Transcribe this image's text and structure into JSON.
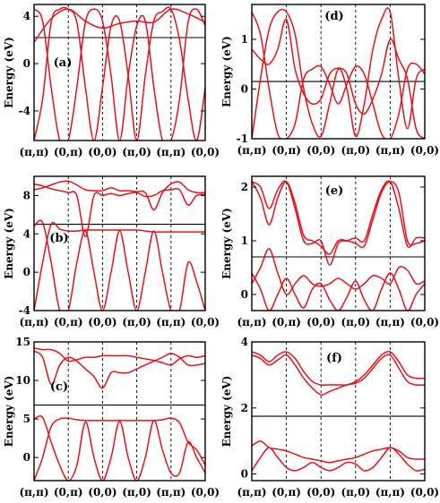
{
  "chart_data": [
    {
      "type": "line",
      "panel_label": "(a)",
      "ylabel": "Energy (eV)",
      "xticks": [
        "(π,π)",
        "(0,π)",
        "(0,0)",
        "(π,0)",
        "(π,π)",
        "(0,0)"
      ],
      "ylim": [
        -6.5,
        5
      ],
      "yticks": [
        -4,
        0,
        4
      ],
      "fermi_level": 2.2,
      "series": [
        {
          "x": [
            0,
            0.25,
            0.5,
            0.75,
            1,
            1.25,
            1.5,
            1.75,
            2,
            2.25,
            2.5,
            2.75,
            3,
            3.25,
            3.5,
            3.75,
            4,
            4.25,
            4.5,
            4.75,
            5
          ],
          "values": [
            -6.5,
            -3,
            3.5,
            4.6,
            4.6,
            3.5,
            -2,
            -6.5,
            -2,
            3.2,
            3.6,
            -1,
            -6.5,
            -1,
            3.6,
            4.4,
            4.6,
            2,
            -3,
            -6.5,
            -2
          ]
        },
        {
          "x": [
            0,
            0.25,
            0.5,
            0.75,
            1,
            1.25,
            1.5,
            1.75,
            2,
            2.25,
            2.5,
            2.75,
            3,
            3.25,
            3.5,
            3.75,
            4,
            4.25,
            4.5,
            4.75,
            5
          ],
          "values": [
            4.6,
            3.6,
            -2,
            -6.5,
            -6.5,
            -2,
            3.5,
            4.6,
            3.6,
            -1,
            -6.5,
            -1,
            3.2,
            3.6,
            -2,
            -6.5,
            -6.5,
            -3,
            3.5,
            4.6,
            3.2
          ]
        },
        {
          "x": [
            0,
            0.5,
            1,
            1.5,
            2,
            2.5,
            3,
            3.5,
            4,
            4.5,
            5
          ],
          "values": [
            1.8,
            3.8,
            4.6,
            3.6,
            3,
            3.4,
            3.6,
            3.5,
            4.6,
            4.2,
            3.5
          ]
        }
      ]
    },
    {
      "type": "line",
      "panel_label": "(b)",
      "ylabel": "Energy (eV)",
      "xticks": [
        "(π,π)",
        "(0,π)",
        "(0,0)",
        "(π,0)",
        "(π,π)",
        "(0,0)"
      ],
      "ylim": [
        -4,
        10
      ],
      "yticks": [
        -4,
        0,
        4,
        8
      ],
      "fermi_level": 5,
      "series": [
        {
          "x": [
            0,
            0.25,
            0.5,
            0.75,
            1,
            1.25,
            1.5,
            1.75,
            2,
            2.25,
            2.5,
            2.75,
            3,
            3.25,
            3.5,
            3.75,
            4,
            4.25,
            4.5,
            4.75,
            5
          ],
          "values": [
            -4,
            1,
            5,
            4.5,
            4.3,
            4.3,
            4.4,
            4.4,
            4.4,
            4.4,
            4.4,
            4.4,
            4.4,
            4.3,
            4.2,
            4.2,
            4.2,
            4.2,
            4.2,
            4.2,
            4.2
          ]
        },
        {
          "x": [
            0,
            0.25,
            0.5,
            0.75,
            1,
            1.25,
            1.5,
            1.75,
            2,
            2.25,
            2.5,
            2.75,
            3,
            3.25,
            3.5,
            3.75,
            4,
            4.25,
            4.5,
            4.75,
            5
          ],
          "values": [
            4.8,
            5.2,
            1,
            -4,
            -4,
            1,
            4.3,
            0,
            -4,
            0,
            4.3,
            0,
            -4,
            0,
            4.3,
            0,
            -4,
            -4,
            1,
            -1,
            -4
          ]
        },
        {
          "x": [
            0,
            0.25,
            0.5,
            0.75,
            1,
            1.25,
            1.5,
            1.75,
            2,
            2.25,
            2.5,
            2.75,
            3,
            3.25,
            3.5,
            3.75,
            4,
            4.25,
            4.5,
            4.75,
            5
          ],
          "values": [
            9.2,
            9,
            8.7,
            8.5,
            8.3,
            8,
            3.7,
            8,
            8,
            8.2,
            8,
            8.2,
            8.3,
            7.9,
            8,
            8.5,
            8.6,
            8.6,
            7,
            8,
            8.1
          ]
        },
        {
          "x": [
            0,
            0.25,
            0.5,
            0.75,
            1,
            1.25,
            1.5,
            1.75,
            2,
            2.25,
            2.5,
            2.75,
            3,
            3.25,
            3.5,
            3.75,
            4,
            4.25,
            4.5,
            4.75,
            5
          ],
          "values": [
            8.6,
            8.8,
            9.1,
            9.4,
            9.5,
            9.1,
            8.6,
            8.5,
            8.5,
            8.8,
            8.5,
            8.5,
            8.4,
            8.3,
            6.5,
            8.3,
            9.2,
            9.4,
            8.6,
            8.3,
            8.3
          ]
        }
      ]
    },
    {
      "type": "line",
      "panel_label": "(c)",
      "ylabel": "Energy (eV)",
      "xticks": [
        "(π,π)",
        "(0,π)",
        "(0,0)",
        "(π,0)",
        "(π,π)",
        "(0,0)"
      ],
      "ylim": [
        -3,
        15
      ],
      "yticks": [
        0,
        5,
        10,
        15
      ],
      "fermi_level": 6.8,
      "series": [
        {
          "x": [
            0,
            0.25,
            0.5,
            0.75,
            1,
            1.25,
            1.5,
            1.75,
            2,
            2.25,
            2.5,
            2.75,
            3,
            3.25,
            3.5,
            3.75,
            4,
            4.25,
            4.5,
            4.75,
            5
          ],
          "values": [
            -3,
            0,
            4,
            5,
            5.1,
            4.9,
            4.8,
            4.8,
            4.8,
            4.8,
            4.8,
            4.8,
            4.8,
            4.8,
            4.8,
            4.9,
            5.1,
            4.5,
            2,
            1,
            -1
          ]
        },
        {
          "x": [
            0,
            0.25,
            0.5,
            0.75,
            1,
            1.25,
            1.5,
            1.75,
            2,
            2.25,
            2.5,
            2.75,
            3,
            3.25,
            3.5,
            3.75,
            4,
            4.25,
            4.5,
            4.75,
            5
          ],
          "values": [
            5,
            5.2,
            2,
            -1,
            -3,
            -1,
            4.6,
            0,
            -3,
            0,
            4.7,
            0,
            -3,
            0,
            4.8,
            1,
            -2,
            -2,
            2,
            0,
            -2
          ]
        },
        {
          "x": [
            0,
            0.25,
            0.5,
            0.75,
            1,
            1.25,
            1.5,
            1.75,
            2,
            2.25,
            2.5,
            2.75,
            3,
            3.25,
            3.5,
            3.75,
            4,
            4.25,
            4.5,
            4.75,
            5
          ],
          "values": [
            13.8,
            13,
            9.5,
            12,
            13,
            12.5,
            11.5,
            10.5,
            9,
            11,
            11,
            11,
            11.5,
            12,
            12.5,
            13,
            13.5,
            13,
            12,
            12,
            12.2
          ]
        },
        {
          "x": [
            0,
            0.25,
            0.5,
            0.75,
            1,
            1.25,
            1.5,
            1.75,
            2,
            2.25,
            2.5,
            2.75,
            3,
            3.25,
            3.5,
            3.75,
            4,
            4.25,
            4.5,
            4.75,
            5
          ],
          "values": [
            14.2,
            14,
            14,
            13.5,
            12.5,
            12.7,
            13,
            13,
            13.2,
            13.2,
            13.2,
            13.2,
            13,
            12.8,
            12.6,
            12.3,
            12,
            12.8,
            13.2,
            13,
            13.2
          ]
        }
      ]
    },
    {
      "type": "line",
      "panel_label": "(d)",
      "ylabel": "Energy (eV)",
      "xticks": [
        "(π,π)",
        "(0,π)",
        "(0,0)",
        "(π,0)",
        "(π,π)",
        "(0,0)"
      ],
      "ylim": [
        -1,
        1.7
      ],
      "yticks": [
        -1,
        0,
        1
      ],
      "fermi_level": 0.15,
      "series": [
        {
          "x": [
            0,
            0.25,
            0.5,
            0.75,
            1,
            1.25,
            1.5,
            1.75,
            2,
            2.25,
            2.5,
            2.75,
            3,
            3.25,
            3.5,
            3.75,
            4,
            4.25,
            4.5,
            4.75,
            5
          ],
          "values": [
            -1,
            0.2,
            1.2,
            1.55,
            1.55,
            1.1,
            0,
            -0.7,
            -0.95,
            -0.3,
            0.4,
            0,
            -0.95,
            -0.3,
            0.8,
            1.4,
            1.55,
            0.2,
            -0.8,
            0.2,
            0.4
          ]
        },
        {
          "x": [
            0,
            0.25,
            0.5,
            0.75,
            1,
            1.25,
            1.5,
            1.75,
            2,
            2.25,
            2.5,
            2.75,
            3,
            3.25,
            3.5,
            3.75,
            4,
            4.25,
            4.5,
            4.75,
            5
          ],
          "values": [
            1.55,
            1.1,
            0,
            -0.9,
            -1,
            -0.7,
            0.2,
            0.4,
            0.45,
            0.1,
            -0.3,
            0.1,
            0.45,
            0.3,
            -0.3,
            -0.9,
            -1,
            -0.5,
            0.4,
            0.5,
            0.3
          ]
        },
        {
          "x": [
            0,
            0.25,
            0.5,
            0.75,
            1,
            1.25,
            1.5,
            1.75,
            2,
            2.25,
            2.5,
            2.75,
            3,
            3.25,
            3.5,
            3.75,
            4,
            4.25,
            4.5,
            4.75,
            5
          ],
          "values": [
            0.8,
            0.6,
            0.5,
            0.8,
            1.4,
            0.4,
            -0.1,
            -0.3,
            -0.2,
            0.3,
            0.42,
            0.3,
            -0.3,
            -0.5,
            -0.2,
            0.3,
            1,
            0.6,
            0.2,
            -0.8,
            -1
          ]
        }
      ]
    },
    {
      "type": "line",
      "panel_label": "(e)",
      "ylabel": "Energy (eV)",
      "xticks": [
        "(π,π)",
        "(0,π)",
        "(0,0)",
        "(π,0)",
        "(π,π)",
        "(0,0)"
      ],
      "ylim": [
        -0.3,
        2.2
      ],
      "yticks": [
        0,
        1,
        2
      ],
      "fermi_level": 0.7,
      "series": [
        {
          "x": [
            0,
            0.25,
            0.5,
            0.75,
            1,
            1.25,
            1.5,
            1.75,
            2,
            2.25,
            2.5,
            2.75,
            3,
            3.25,
            3.5,
            3.75,
            4,
            4.25,
            4.5,
            4.75,
            5
          ],
          "values": [
            2.1,
            1.8,
            1.3,
            1.8,
            2.1,
            1.7,
            1.1,
            1,
            0.9,
            0.75,
            1,
            1,
            0.95,
            0.9,
            1.4,
            1.9,
            2.1,
            1.9,
            1,
            0.95,
            1
          ]
        },
        {
          "x": [
            0,
            0.25,
            0.5,
            0.75,
            1,
            1.25,
            1.5,
            1.75,
            2,
            2.25,
            2.5,
            2.75,
            3,
            3.25,
            3.5,
            3.75,
            4,
            4.25,
            4.5,
            4.75,
            5
          ],
          "values": [
            2.1,
            2,
            1.6,
            1.95,
            2.1,
            1.6,
            1,
            0.95,
            1,
            0.55,
            0.95,
            1,
            1.05,
            1,
            1.5,
            1.95,
            2.1,
            1.6,
            0.9,
            1.05,
            1.05
          ]
        },
        {
          "x": [
            0,
            0.25,
            0.5,
            0.75,
            1,
            1.25,
            1.5,
            1.75,
            2,
            2.25,
            2.5,
            2.75,
            3,
            3.25,
            3.5,
            3.75,
            4,
            4.25,
            4.5,
            4.75,
            5
          ],
          "values": [
            0.2,
            0.5,
            0.85,
            0.4,
            0,
            0.2,
            0.35,
            0.2,
            0.15,
            0.2,
            0.3,
            0.2,
            0.1,
            0.2,
            0.35,
            0.3,
            0.2,
            0.5,
            0.45,
            0.2,
            0.25
          ]
        },
        {
          "x": [
            0,
            0.25,
            0.5,
            0.75,
            1,
            1.25,
            1.5,
            1.75,
            2,
            2.25,
            2.5,
            2.75,
            3,
            3.25,
            3.5,
            3.75,
            4,
            4.25,
            4.5,
            4.75,
            5
          ],
          "values": [
            0.4,
            0.1,
            -0.3,
            0,
            0.3,
            0,
            -0.25,
            0.1,
            0.2,
            -0.1,
            -0.3,
            -0.05,
            0.25,
            -0.1,
            -0.3,
            0.1,
            0.4,
            0.1,
            -0.3,
            0,
            0.2
          ]
        }
      ]
    },
    {
      "type": "line",
      "panel_label": "(f)",
      "ylabel": "Energy (eV)",
      "xticks": [
        "(π,π)",
        "(0,π)",
        "(0,0)",
        "(π,0)",
        "(π,π)",
        "(0,0)"
      ],
      "ylim": [
        -0.2,
        4
      ],
      "yticks": [
        0,
        2,
        4
      ],
      "fermi_level": 1.75,
      "series": [
        {
          "x": [
            0,
            0.25,
            0.5,
            0.75,
            1,
            1.25,
            1.5,
            1.75,
            2,
            2.25,
            2.5,
            2.75,
            3,
            3.25,
            3.5,
            3.75,
            4,
            4.25,
            4.5,
            4.75,
            5
          ],
          "values": [
            3.7,
            3.6,
            3.4,
            3.6,
            3.7,
            3.5,
            3.1,
            2.8,
            2.7,
            2.7,
            2.7,
            2.7,
            2.8,
            3,
            3.3,
            3.6,
            3.7,
            3.4,
            3,
            2.9,
            2.9
          ]
        },
        {
          "x": [
            0,
            0.25,
            0.5,
            0.75,
            1,
            1.25,
            1.5,
            1.75,
            2,
            2.25,
            2.5,
            2.75,
            3,
            3.25,
            3.5,
            3.75,
            4,
            4.25,
            4.5,
            4.75,
            5
          ],
          "values": [
            3.6,
            3.5,
            3.3,
            3.45,
            3.6,
            3.3,
            2.9,
            2.6,
            2.4,
            2.5,
            2.6,
            2.7,
            2.75,
            2.9,
            3.2,
            3.5,
            3.6,
            3.2,
            2.8,
            2.7,
            2.7
          ]
        },
        {
          "x": [
            0,
            0.25,
            0.5,
            0.75,
            1,
            1.25,
            1.5,
            1.75,
            2,
            2.25,
            2.5,
            2.75,
            3,
            3.25,
            3.5,
            3.75,
            4,
            4.25,
            4.5,
            4.75,
            5
          ],
          "values": [
            0.85,
            1,
            0.8,
            0.75,
            0.7,
            0.6,
            0.5,
            0.45,
            0.4,
            0.35,
            0.4,
            0.45,
            0.5,
            0.6,
            0.7,
            0.75,
            0.8,
            0.7,
            0.5,
            0.45,
            0.45
          ]
        },
        {
          "x": [
            0,
            0.25,
            0.5,
            0.75,
            1,
            1.25,
            1.5,
            1.75,
            2,
            2.25,
            2.5,
            2.75,
            3,
            3.25,
            3.5,
            3.75,
            4,
            4.25,
            4.5,
            4.75,
            5
          ],
          "values": [
            0.1,
            0.5,
            0.8,
            0.5,
            0.2,
            0.1,
            0.2,
            0.35,
            0.2,
            0.1,
            0.2,
            0.35,
            0.3,
            0.1,
            0.2,
            0.5,
            0.8,
            0.6,
            0.3,
            0.1,
            0.15
          ]
        }
      ]
    }
  ]
}
